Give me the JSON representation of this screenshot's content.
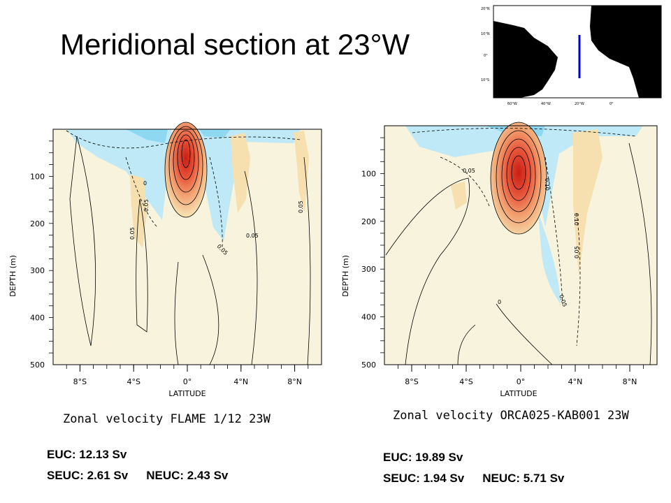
{
  "title": "Meridional section at 23°W",
  "inset_map": {
    "lat_labels": [
      "20°N",
      "10°N",
      "0°",
      "10°S"
    ],
    "lon_labels": [
      "60°W",
      "40°W",
      "20°W",
      "0°"
    ],
    "section_color": "#0000cc"
  },
  "colors": {
    "westward": "#8ed8f2",
    "weak": "#f7f3dc",
    "eastward_weak": "#f6e0b0",
    "eastward_strong": "#d62b1f"
  },
  "chart_data": [
    {
      "type": "contour",
      "caption": "Zonal velocity FLAME 1/12 23W",
      "xlabel": "LATITUDE",
      "ylabel": "DEPTH (m)",
      "xticks": [
        "8°S",
        "4°S",
        "0°",
        "4°N",
        "8°N"
      ],
      "yticks": [
        "100",
        "200",
        "300",
        "400",
        "500"
      ],
      "xlim": [
        -10,
        10
      ],
      "ylim": [
        500,
        0
      ],
      "contour_labels": [
        "0",
        "0.05",
        "0.05",
        "0.05",
        "0.05",
        "0.05"
      ],
      "euc_core": {
        "lat": -0.3,
        "depth": 50
      },
      "stats": {
        "euc": "EUC: 12.13 Sv",
        "seuc": "SEUC: 2.61 Sv",
        "neuc": "NEUC: 2.43 Sv"
      }
    },
    {
      "type": "contour",
      "caption": "Zonal velocity ORCA025-KAB001 23W",
      "xlabel": "LATITUDE",
      "ylabel": "DEPTH (m)",
      "xticks": [
        "8°S",
        "4°S",
        "0°",
        "4°N",
        "8°N"
      ],
      "yticks": [
        "100",
        "200",
        "300",
        "400",
        "500"
      ],
      "xlim": [
        -10,
        10
      ],
      "ylim": [
        500,
        0
      ],
      "contour_labels": [
        "0",
        "0.05",
        "0.10",
        "0.10",
        "0.05",
        "0.05"
      ],
      "euc_core": {
        "lat": -0.2,
        "depth": 90
      },
      "stats": {
        "euc": "EUC: 19.89 Sv",
        "seuc": "SEUC: 1.94 Sv",
        "neuc": "NEUC: 5.71 Sv"
      }
    }
  ]
}
